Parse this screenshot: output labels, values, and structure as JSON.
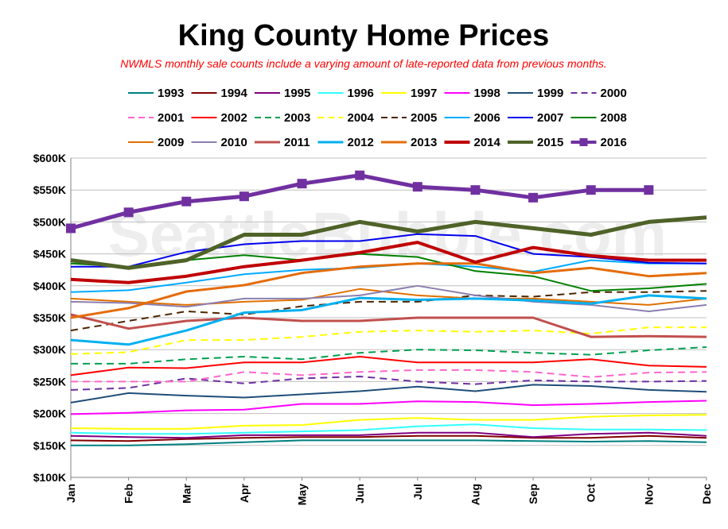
{
  "chart_data": {
    "type": "line",
    "title": "King County Home Prices",
    "subtitle": "NWMLS monthly sale counts include a varying amount of late-reported  data from previous months.",
    "watermark": "SeattleBubble.com",
    "categories": [
      "Jan",
      "Feb",
      "Mar",
      "Apr",
      "May",
      "Jun",
      "Jul",
      "Aug",
      "Sep",
      "Oct",
      "Nov",
      "Dec"
    ],
    "y_ticks": [
      "$100K",
      "$150K",
      "$200K",
      "$250K",
      "$300K",
      "$350K",
      "$400K",
      "$450K",
      "$500K",
      "$550K",
      "$600K"
    ],
    "ylim": [
      100000,
      600000
    ],
    "grid": "horizontal",
    "legend_position": "top",
    "series": [
      {
        "name": "1993",
        "color": "#008080",
        "dash": "solid",
        "width": 2,
        "values": [
          150000,
          150000,
          152000,
          155000,
          158000,
          158000,
          158000,
          158000,
          157000,
          156000,
          157000,
          155000
        ]
      },
      {
        "name": "1994",
        "color": "#800000",
        "dash": "solid",
        "width": 2,
        "values": [
          158000,
          157000,
          160000,
          162000,
          163000,
          163000,
          165000,
          165000,
          162000,
          162000,
          165000,
          162000
        ]
      },
      {
        "name": "1995",
        "color": "#800080",
        "dash": "solid",
        "width": 2,
        "values": [
          165000,
          163000,
          162000,
          166000,
          166000,
          166000,
          170000,
          170000,
          163000,
          168000,
          170000,
          165000
        ]
      },
      {
        "name": "1996",
        "color": "#33ffff",
        "dash": "solid",
        "width": 2,
        "values": [
          170000,
          168000,
          168000,
          170000,
          172000,
          174000,
          180000,
          183000,
          177000,
          175000,
          175000,
          174000
        ]
      },
      {
        "name": "1997",
        "color": "#ffff00",
        "dash": "solid",
        "width": 2,
        "values": [
          177000,
          176000,
          176000,
          181000,
          182000,
          190000,
          193000,
          190000,
          190000,
          195000,
          197000,
          198000
        ]
      },
      {
        "name": "1998",
        "color": "#ff00ff",
        "dash": "solid",
        "width": 2,
        "values": [
          199000,
          201000,
          205000,
          206000,
          215000,
          215000,
          219000,
          218000,
          213000,
          215000,
          218000,
          220000
        ]
      },
      {
        "name": "1999",
        "color": "#1f4e79",
        "dash": "solid",
        "width": 2,
        "values": [
          217000,
          232000,
          228000,
          225000,
          230000,
          235000,
          242000,
          235000,
          245000,
          243000,
          237000,
          234000
        ]
      },
      {
        "name": "2000",
        "color": "#7030a0",
        "dash": "dashed",
        "width": 2,
        "values": [
          237000,
          240000,
          255000,
          247000,
          255000,
          258000,
          250000,
          246000,
          252000,
          250000,
          250000,
          251000
        ]
      },
      {
        "name": "2001",
        "color": "#ff66cc",
        "dash": "dashed",
        "width": 2,
        "values": [
          250000,
          250000,
          250000,
          265000,
          260000,
          265000,
          268000,
          268000,
          265000,
          257000,
          264000,
          265000
        ]
      },
      {
        "name": "2002",
        "color": "#ff0000",
        "dash": "solid",
        "width": 2,
        "values": [
          260000,
          272000,
          271000,
          280000,
          280000,
          289000,
          280000,
          280000,
          280000,
          285000,
          275000,
          273000
        ]
      },
      {
        "name": "2003",
        "color": "#00a050",
        "dash": "dashed",
        "width": 2,
        "values": [
          278000,
          278000,
          285000,
          289000,
          285000,
          295000,
          300000,
          299000,
          295000,
          292000,
          299000,
          304000
        ]
      },
      {
        "name": "2004",
        "color": "#ffff00",
        "dash": "dashed",
        "width": 2,
        "values": [
          293000,
          296000,
          315000,
          315000,
          320000,
          328000,
          330000,
          328000,
          330000,
          325000,
          335000,
          335000
        ]
      },
      {
        "name": "2005",
        "color": "#4d2600",
        "dash": "dashed",
        "width": 2,
        "values": [
          330000,
          345000,
          360000,
          355000,
          368000,
          375000,
          375000,
          385000,
          383000,
          390000,
          390000,
          392000
        ]
      },
      {
        "name": "2006",
        "color": "#00aaff",
        "dash": "solid",
        "width": 2,
        "values": [
          390000,
          393000,
          405000,
          418000,
          425000,
          428000,
          435000,
          430000,
          422000,
          440000,
          435000,
          435000
        ]
      },
      {
        "name": "2007",
        "color": "#0000ee",
        "dash": "solid",
        "width": 2,
        "values": [
          430000,
          430000,
          453000,
          465000,
          470000,
          470000,
          481000,
          478000,
          450000,
          445000,
          436000,
          435000
        ]
      },
      {
        "name": "2008",
        "color": "#008000",
        "dash": "solid",
        "width": 2,
        "values": [
          435000,
          430000,
          440000,
          448000,
          440000,
          450000,
          445000,
          423000,
          415000,
          392000,
          396000,
          403000
        ]
      },
      {
        "name": "2009",
        "color": "#e07000",
        "dash": "solid",
        "width": 2,
        "values": [
          380000,
          375000,
          370000,
          375000,
          378000,
          395000,
          385000,
          380000,
          380000,
          375000,
          370000,
          380000
        ]
      },
      {
        "name": "2010",
        "color": "#8c7fb0",
        "dash": "solid",
        "width": 2,
        "values": [
          375000,
          373000,
          367000,
          380000,
          380000,
          385000,
          400000,
          385000,
          375000,
          370000,
          360000,
          370000
        ]
      },
      {
        "name": "2011",
        "color": "#c0504d",
        "dash": "solid",
        "width": 3,
        "values": [
          355000,
          333000,
          345000,
          350000,
          345000,
          345000,
          350000,
          350000,
          350000,
          320000,
          321000,
          320000
        ]
      },
      {
        "name": "2012",
        "color": "#00b0f0",
        "dash": "solid",
        "width": 3,
        "values": [
          315000,
          308000,
          330000,
          358000,
          362000,
          381000,
          378000,
          380000,
          377000,
          372000,
          385000,
          380000
        ]
      },
      {
        "name": "2013",
        "color": "#e46c0a",
        "dash": "solid",
        "width": 3,
        "values": [
          350000,
          365000,
          391000,
          401000,
          420000,
          430000,
          435000,
          435000,
          420000,
          428000,
          415000,
          420000
        ]
      },
      {
        "name": "2014",
        "color": "#c00000",
        "dash": "solid",
        "width": 4,
        "values": [
          410000,
          405000,
          415000,
          430000,
          440000,
          452000,
          468000,
          437000,
          460000,
          447000,
          440000,
          440000
        ]
      },
      {
        "name": "2015",
        "color": "#4f6228",
        "dash": "solid",
        "width": 5,
        "values": [
          440000,
          428000,
          440000,
          480000,
          480000,
          500000,
          485000,
          500000,
          490000,
          480000,
          500000,
          507000
        ]
      },
      {
        "name": "2016",
        "color": "#7030a0",
        "dash": "solid",
        "width": 5,
        "marker": "square",
        "values": [
          490000,
          515000,
          532000,
          540000,
          560000,
          573000,
          555000,
          550000,
          538000,
          550000,
          550000,
          null
        ]
      }
    ]
  }
}
